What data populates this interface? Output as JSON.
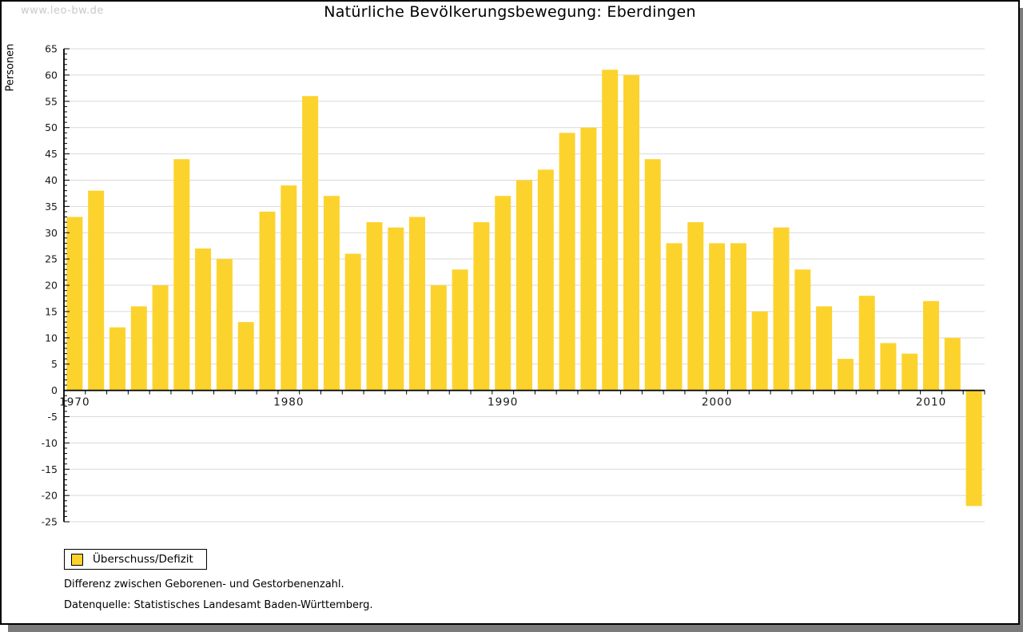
{
  "page": {
    "watermark": "www.leo-bw.de",
    "title": "Natürliche Bevölkerungsbewegung: Eberdingen"
  },
  "colors": {
    "bar": "#fcd32d",
    "grid": "#d9d9d9",
    "axis": "#000000",
    "shadow": "#7b7b7b"
  },
  "chart_data": {
    "type": "bar",
    "title": "Natürliche Bevölkerungsbewegung: Eberdingen",
    "xlabel": "",
    "ylabel": "Personen",
    "ylim": [
      -25,
      65
    ],
    "ytick_step": 5,
    "yticks": [
      65,
      60,
      55,
      50,
      45,
      40,
      35,
      30,
      25,
      20,
      15,
      10,
      5,
      0,
      -5,
      -10,
      -15,
      -20,
      -25
    ],
    "grid": true,
    "legend_position": "bottom-left",
    "series_name": "Überschuss/Defizit",
    "categories": [
      1970,
      1971,
      1972,
      1973,
      1974,
      1975,
      1976,
      1977,
      1978,
      1979,
      1980,
      1981,
      1982,
      1983,
      1984,
      1985,
      1986,
      1987,
      1988,
      1989,
      1990,
      1991,
      1992,
      1993,
      1994,
      1995,
      1996,
      1997,
      1998,
      1999,
      2000,
      2001,
      2002,
      2003,
      2004,
      2005,
      2006,
      2007,
      2008,
      2009,
      2010,
      2011,
      2012
    ],
    "values": [
      33,
      38,
      12,
      16,
      20,
      44,
      27,
      25,
      13,
      34,
      39,
      56,
      37,
      26,
      32,
      31,
      33,
      20,
      23,
      32,
      37,
      40,
      42,
      49,
      50,
      61,
      60,
      44,
      28,
      32,
      28,
      28,
      15,
      31,
      23,
      16,
      6,
      18,
      9,
      7,
      17,
      10,
      -22
    ],
    "xtick_labels": [
      "1970",
      "1980",
      "1990",
      "2000",
      "2010"
    ]
  },
  "legend": {
    "label": "Überschuss/Defizit"
  },
  "footer": {
    "line1": "Differenz zwischen Geborenen- und Gestorbenenzahl.",
    "line2": "Datenquelle: Statistisches Landesamt Baden-Württemberg."
  }
}
